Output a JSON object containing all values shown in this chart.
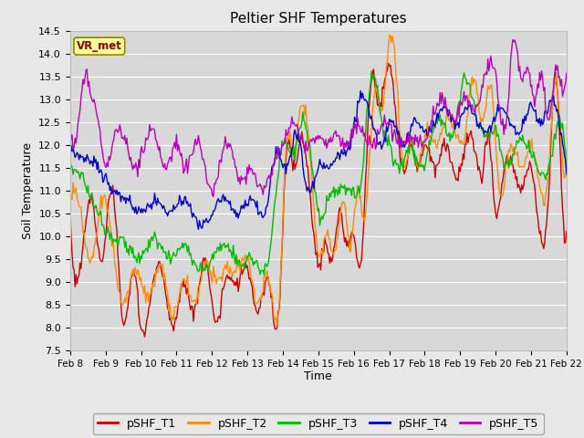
{
  "title": "Peltier SHF Temperatures",
  "xlabel": "Time",
  "ylabel": "Soil Temperature",
  "ylim": [
    7.5,
    14.5
  ],
  "bg_color": "#e8e8e8",
  "plot_bg_color": "#d8d8d8",
  "grid_color": "#ffffff",
  "legend_label": "VR_met",
  "legend_bg": "#ffff99",
  "legend_border": "#8b8b00",
  "series_colors": {
    "pSHF_T1": "#cc0000",
    "pSHF_T2": "#ff8c00",
    "pSHF_T3": "#00bb00",
    "pSHF_T4": "#0000cc",
    "pSHF_T5": "#bb00bb"
  },
  "xtick_labels": [
    "Feb 8",
    "Feb 9",
    "Feb 10",
    "Feb 11",
    "Feb 12",
    "Feb 13",
    "Feb 14",
    "Feb 15",
    "Feb 16",
    "Feb 17",
    "Feb 18",
    "Feb 19",
    "Feb 20",
    "Feb 21",
    "Feb 22"
  ],
  "figsize": [
    6.4,
    4.8
  ],
  "dpi": 100
}
